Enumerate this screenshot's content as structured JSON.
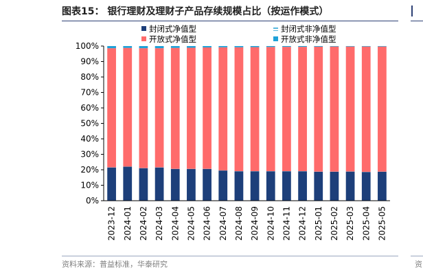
{
  "figure": {
    "title": "图表15：  银行理财及理财子产品存续规模占比（按运作模式）",
    "source": "资料来源：普益标准，华泰研究",
    "edge_glyph": "资"
  },
  "colors": {
    "closed_nav": "#1d3f7a",
    "closed_non_nav": "#59b8de",
    "open_nav": "#ff6b6b",
    "open_non_nav": "#1fa1d8"
  },
  "chart_data": {
    "type": "bar",
    "stacked": true,
    "categories": [
      "2023-12",
      "2024-01",
      "2024-02",
      "2024-03",
      "2024-04",
      "2024-05",
      "2024-06",
      "2024-07",
      "2024-08",
      "2024-09",
      "2024-10",
      "2024-11",
      "2024-12",
      "2025-01",
      "2025-02",
      "2025-03",
      "2025-04",
      "2025-05"
    ],
    "series": [
      {
        "name": "封闭式净值型",
        "color": "#1d3f7a",
        "values": [
          21.5,
          22.0,
          21.0,
          21.5,
          20.5,
          20.5,
          20.5,
          19.5,
          19.0,
          19.0,
          19.0,
          19.0,
          19.0,
          18.7,
          18.7,
          18.8,
          18.6,
          18.7
        ]
      },
      {
        "name": "封闭式非净值型",
        "color": "#59b8de",
        "pattern": "striped",
        "values": [
          0.1,
          0.1,
          0.1,
          0.1,
          0.1,
          0.1,
          0.1,
          0.1,
          0.1,
          0.1,
          0.1,
          0.1,
          0.1,
          0.1,
          0.1,
          0.1,
          0.1,
          0.1
        ]
      },
      {
        "name": "开放式净值型",
        "color": "#ff6b6b",
        "values": [
          77.0,
          76.7,
          77.5,
          77.0,
          78.2,
          78.3,
          78.5,
          79.6,
          80.1,
          80.2,
          80.3,
          80.4,
          80.4,
          80.8,
          80.9,
          80.8,
          81.0,
          80.9
        ]
      },
      {
        "name": "开放式非净值型",
        "color": "#1fa1d8",
        "values": [
          1.4,
          1.2,
          1.4,
          1.4,
          1.2,
          1.1,
          0.9,
          0.8,
          0.8,
          0.7,
          0.6,
          0.5,
          0.5,
          0.4,
          0.3,
          0.3,
          0.3,
          0.3
        ]
      }
    ],
    "y_ticks": [
      "0%",
      "10%",
      "20%",
      "30%",
      "40%",
      "50%",
      "60%",
      "70%",
      "80%",
      "90%",
      "100%"
    ],
    "ylim": [
      0,
      100
    ],
    "grid": false,
    "legend_position": "top"
  }
}
